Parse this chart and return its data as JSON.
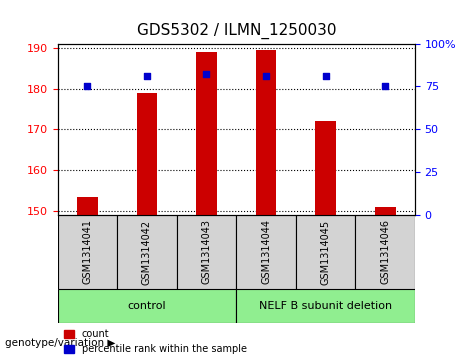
{
  "title": "GDS5302 / ILMN_1250030",
  "samples": [
    "GSM1314041",
    "GSM1314042",
    "GSM1314043",
    "GSM1314044",
    "GSM1314045",
    "GSM1314046"
  ],
  "count_values": [
    153.5,
    179,
    189,
    189.5,
    172,
    151
  ],
  "percentile_values": [
    75,
    81,
    82,
    81,
    81,
    75
  ],
  "ylim_left": [
    149,
    191
  ],
  "ylim_right": [
    0,
    100
  ],
  "yticks_left": [
    150,
    160,
    170,
    180,
    190
  ],
  "yticks_right": [
    0,
    25,
    50,
    75,
    100
  ],
  "bar_color": "#cc0000",
  "dot_color": "#0000cc",
  "bar_width": 0.35,
  "groups": [
    {
      "label": "control",
      "samples": [
        0,
        1,
        2
      ],
      "color": "#90ee90"
    },
    {
      "label": "NELF B subunit deletion",
      "samples": [
        3,
        4,
        5
      ],
      "color": "#90ee90"
    }
  ],
  "group_label": "genotype/variation",
  "legend_count_label": "count",
  "legend_pct_label": "percentile rank within the sample",
  "sample_box_color": "#d3d3d3",
  "gridline_style": "dotted"
}
